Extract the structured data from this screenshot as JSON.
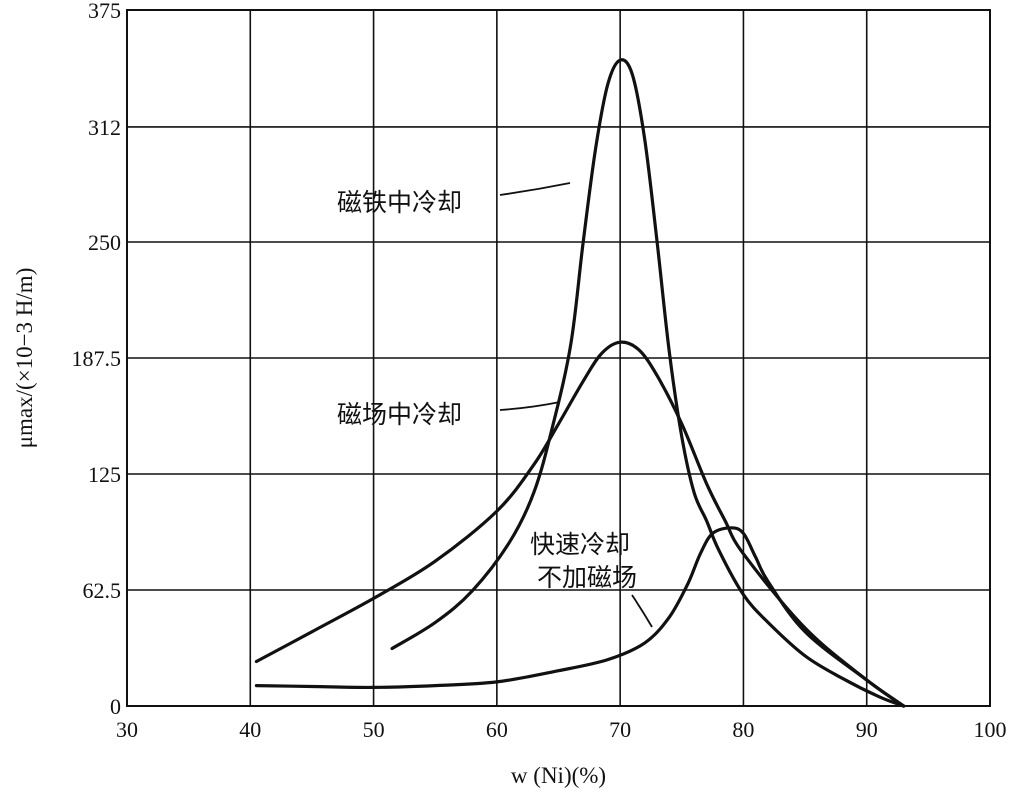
{
  "chart_data": {
    "type": "line",
    "title": "",
    "xlabel": "w (Ni)(%)",
    "ylabel": "μmax/(×10−3 H/m)",
    "xlim": [
      30,
      100
    ],
    "ylim": [
      0,
      375
    ],
    "xticks": [
      "30",
      "40",
      "50",
      "60",
      "70",
      "80",
      "90",
      "100"
    ],
    "yticks": [
      "0",
      "62.5",
      "125",
      "187.5",
      "250",
      "312",
      "375"
    ],
    "grid": true,
    "series": [
      {
        "name": "磁铁中冷却",
        "points": [
          [
            51.5,
            31
          ],
          [
            55,
            45
          ],
          [
            58,
            62
          ],
          [
            61,
            88
          ],
          [
            63,
            115
          ],
          [
            64.5,
            150
          ],
          [
            66,
            195
          ],
          [
            67,
            250
          ],
          [
            68,
            300
          ],
          [
            69,
            335
          ],
          [
            70,
            348
          ],
          [
            71,
            340
          ],
          [
            72,
            305
          ],
          [
            73,
            250
          ],
          [
            74,
            190
          ],
          [
            75,
            145
          ],
          [
            76,
            115
          ],
          [
            77,
            100
          ],
          [
            78,
            84
          ],
          [
            80,
            60
          ],
          [
            82,
            45
          ],
          [
            85,
            27
          ],
          [
            88,
            15
          ],
          [
            91,
            5
          ],
          [
            93,
            0
          ]
        ]
      },
      {
        "name": "磁场中冷却",
        "points": [
          [
            40.5,
            24
          ],
          [
            45,
            40
          ],
          [
            50,
            58
          ],
          [
            55,
            78
          ],
          [
            60,
            105
          ],
          [
            63,
            130
          ],
          [
            65,
            152
          ],
          [
            67,
            175
          ],
          [
            68.5,
            190
          ],
          [
            70,
            196
          ],
          [
            71.5,
            192
          ],
          [
            73,
            178
          ],
          [
            75,
            152
          ],
          [
            77,
            120
          ],
          [
            78.5,
            100
          ],
          [
            80,
            82
          ],
          [
            85,
            42
          ],
          [
            90,
            14
          ],
          [
            93,
            0
          ]
        ]
      },
      {
        "name": "快速冷却 不加磁场",
        "points": [
          [
            40.5,
            11
          ],
          [
            45,
            10.5
          ],
          [
            50,
            10
          ],
          [
            55,
            11
          ],
          [
            60,
            13
          ],
          [
            65,
            19
          ],
          [
            69,
            25
          ],
          [
            72,
            34
          ],
          [
            74,
            48
          ],
          [
            75.5,
            66
          ],
          [
            76.5,
            82
          ],
          [
            77.5,
            93
          ],
          [
            79,
            96
          ],
          [
            80,
            93
          ],
          [
            81,
            80
          ],
          [
            82,
            67
          ],
          [
            85,
            40
          ],
          [
            90,
            14
          ],
          [
            93,
            0
          ]
        ]
      }
    ],
    "annotations": [
      {
        "text": "磁铁中冷却"
      },
      {
        "text": "磁场中冷却"
      },
      {
        "text": "快速冷却"
      },
      {
        "text": "不加磁场"
      }
    ]
  }
}
